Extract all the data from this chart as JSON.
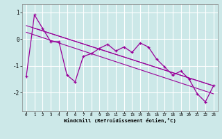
{
  "x": [
    0,
    1,
    2,
    3,
    4,
    5,
    6,
    7,
    8,
    9,
    10,
    11,
    12,
    13,
    14,
    15,
    16,
    17,
    18,
    19,
    20,
    21,
    22,
    23
  ],
  "y_main": [
    -1.4,
    0.9,
    0.4,
    -0.1,
    -0.1,
    -1.35,
    -1.6,
    -0.65,
    -0.55,
    -0.35,
    -0.2,
    -0.45,
    -0.3,
    -0.5,
    -0.15,
    -0.3,
    -0.75,
    -1.05,
    -1.35,
    -1.2,
    -1.5,
    -2.05,
    -2.35,
    -1.75
  ],
  "color": "#990099",
  "background_color": "#cce8e8",
  "grid_color": "#ffffff",
  "xlabel": "Windchill (Refroidissement éolien,°C)",
  "ylim": [
    -2.7,
    1.3
  ],
  "xlim": [
    -0.5,
    23.5
  ],
  "yticks": [
    -2,
    -1,
    0,
    1
  ],
  "xticks": [
    0,
    1,
    2,
    3,
    4,
    5,
    6,
    7,
    8,
    9,
    10,
    11,
    12,
    13,
    14,
    15,
    16,
    17,
    18,
    19,
    20,
    21,
    22,
    23
  ],
  "line1_x": [
    0,
    23
  ],
  "line1_y": [
    0.5,
    -1.75
  ],
  "line2_x": [
    0,
    23
  ],
  "line2_y": [
    0.25,
    -2.05
  ],
  "line3_x": [
    1,
    23
  ],
  "line3_y": [
    0.4,
    -1.75
  ]
}
